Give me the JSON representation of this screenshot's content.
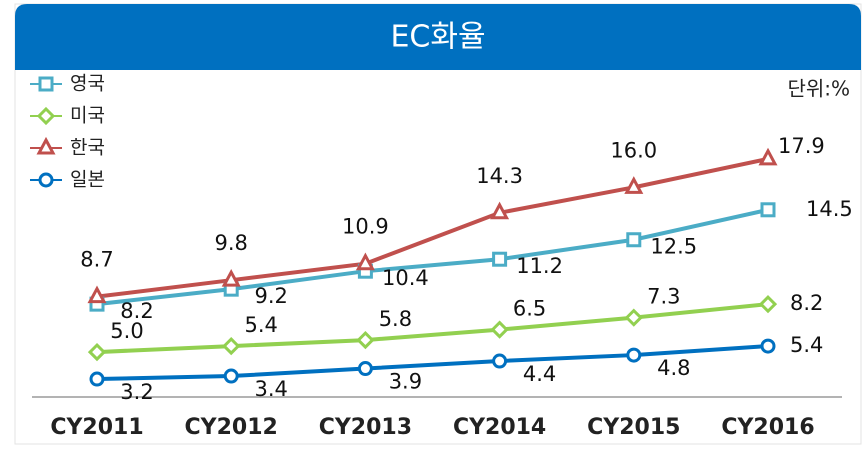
{
  "chart_data": {
    "type": "line",
    "title": "EC화율",
    "unit_label": "단위:%",
    "categories": [
      "CY2011",
      "CY2012",
      "CY2013",
      "CY2014",
      "CY2015",
      "CY2016"
    ],
    "ylim": [
      2,
      23.5
    ],
    "series": [
      {
        "name": "영국",
        "color": "#4bacc6",
        "marker": "square",
        "values": [
          8.2,
          9.2,
          10.4,
          11.2,
          12.5,
          14.5
        ]
      },
      {
        "name": "미국",
        "color": "#92d050",
        "marker": "diamond",
        "values": [
          5.0,
          5.4,
          5.8,
          6.5,
          7.3,
          8.2
        ],
        "value_labels": [
          "5.0",
          "5.4",
          "5.8",
          "6.5",
          "7.3",
          "8.2"
        ]
      },
      {
        "name": "한국",
        "color": "#c0504d",
        "marker": "triangle",
        "values": [
          8.7,
          9.8,
          10.9,
          14.3,
          16.0,
          17.9
        ],
        "value_labels": [
          "8.7",
          "9.8",
          "10.9",
          "14.3",
          "16.0",
          "17.9"
        ]
      },
      {
        "name": "일본",
        "color": "#0070c0",
        "marker": "circle",
        "values": [
          3.2,
          3.4,
          3.9,
          4.4,
          4.8,
          5.4
        ]
      }
    ]
  }
}
